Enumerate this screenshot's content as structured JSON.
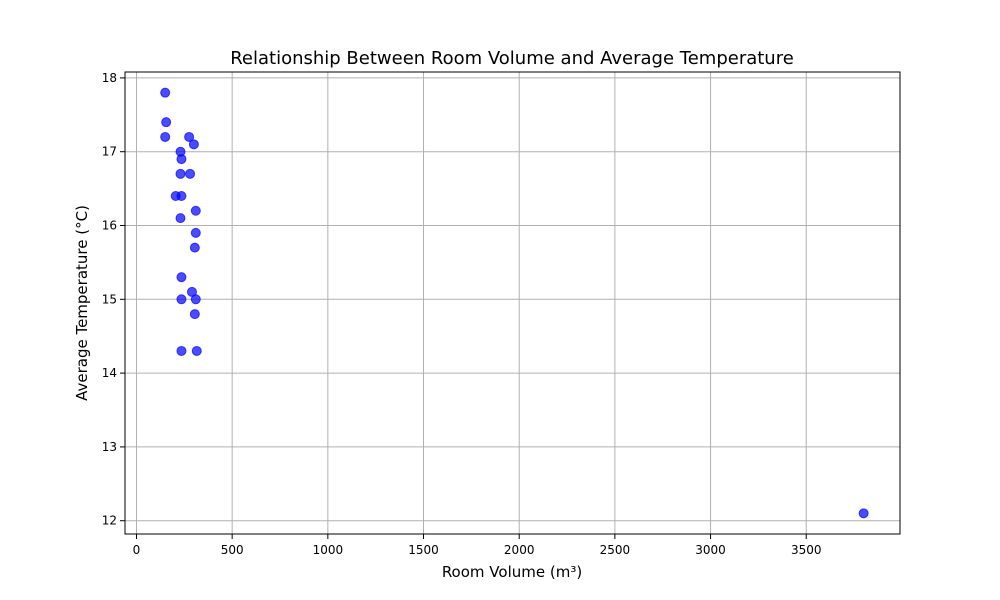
{
  "chart_data": {
    "type": "scatter",
    "title": "Relationship Between Room Volume and Average Temperature",
    "xlabel": "Room Volume (m³)",
    "ylabel": "Average Temperature (°C)",
    "xlim": [
      -60,
      3990
    ],
    "ylim": [
      11.82,
      18.08
    ],
    "xticks": [
      0,
      500,
      1000,
      1500,
      2000,
      2500,
      3000,
      3500
    ],
    "yticks": [
      12,
      13,
      14,
      15,
      16,
      17,
      18
    ],
    "grid": true,
    "marker_color": "#0000ff",
    "marker_alpha": 0.7,
    "points": [
      {
        "x": 150,
        "y": 17.8
      },
      {
        "x": 155,
        "y": 17.4
      },
      {
        "x": 150,
        "y": 17.2
      },
      {
        "x": 275,
        "y": 17.2
      },
      {
        "x": 300,
        "y": 17.1
      },
      {
        "x": 230,
        "y": 17.0
      },
      {
        "x": 235,
        "y": 16.9
      },
      {
        "x": 230,
        "y": 16.7
      },
      {
        "x": 280,
        "y": 16.7
      },
      {
        "x": 205,
        "y": 16.4
      },
      {
        "x": 235,
        "y": 16.4
      },
      {
        "x": 310,
        "y": 16.2
      },
      {
        "x": 230,
        "y": 16.1
      },
      {
        "x": 310,
        "y": 15.9
      },
      {
        "x": 305,
        "y": 15.7
      },
      {
        "x": 235,
        "y": 15.3
      },
      {
        "x": 290,
        "y": 15.1
      },
      {
        "x": 235,
        "y": 15.0
      },
      {
        "x": 310,
        "y": 15.0
      },
      {
        "x": 305,
        "y": 14.8
      },
      {
        "x": 235,
        "y": 14.3
      },
      {
        "x": 315,
        "y": 14.3
      },
      {
        "x": 3800,
        "y": 12.1
      }
    ]
  }
}
